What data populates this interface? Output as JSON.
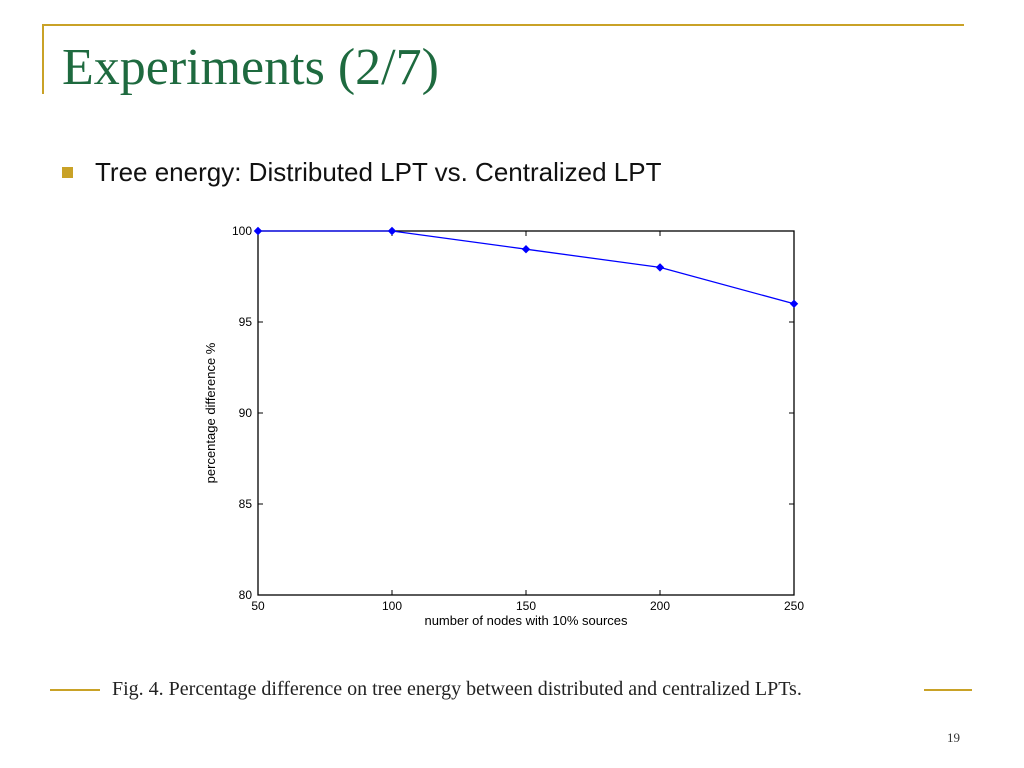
{
  "slide": {
    "title": "Experiments (2/7)",
    "bullet": "Tree energy: Distributed LPT vs. Centralized LPT",
    "caption": "Fig. 4.     Percentage difference on tree energy between distributed and centralized LPTs.",
    "page_number": "19"
  },
  "colors": {
    "accent": "#c9a227",
    "title": "#1e6a3f",
    "series": "#0000ff"
  },
  "chart_data": {
    "type": "line",
    "title": "",
    "xlabel": "number of nodes with 10% sources",
    "ylabel": "percentage difference %",
    "xlim": [
      50,
      250
    ],
    "ylim": [
      80,
      100
    ],
    "x_ticks": [
      "50",
      "100",
      "150",
      "200",
      "250"
    ],
    "y_ticks": [
      "80",
      "85",
      "90",
      "95",
      "100"
    ],
    "grid": false,
    "marker": "diamond",
    "series": [
      {
        "x": [
          50,
          100,
          150,
          200,
          250
        ],
        "values": [
          100,
          100,
          99,
          98,
          96
        ]
      }
    ]
  }
}
